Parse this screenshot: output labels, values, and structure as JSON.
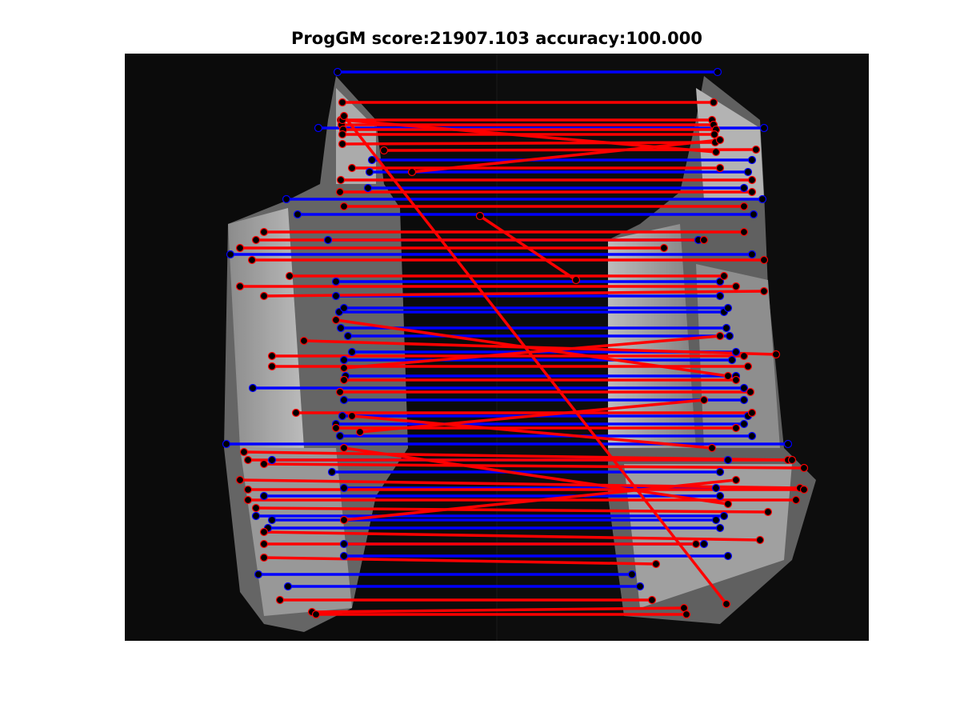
{
  "figure": {
    "title": "ProgGM score:21907.103 accuracy:100.000"
  },
  "image_pair": {
    "description": "Two grayscale aerial views of the same multi-winged building placed side by side, with feature keypoints (black circles) connected by match lines.",
    "left_view": "grayscale-building-view-1",
    "right_view": "grayscale-building-view-2"
  },
  "legend_colors": {
    "blue_lines": "#0000ff",
    "red_lines": "#ff0000",
    "keypoints": "#000000"
  },
  "matches": {
    "blue": [
      [
        422,
        90,
        897,
        90
      ],
      [
        358,
        249,
        953,
        249
      ],
      [
        288,
        318,
        940,
        318
      ],
      [
        316,
        485,
        930,
        485
      ],
      [
        420,
        352,
        900,
        352
      ],
      [
        420,
        370,
        900,
        370
      ],
      [
        424,
        390,
        905,
        390
      ],
      [
        426,
        410,
        908,
        410
      ],
      [
        430,
        450,
        915,
        450
      ],
      [
        432,
        470,
        920,
        470
      ],
      [
        430,
        500,
        930,
        500
      ],
      [
        428,
        520,
        935,
        520
      ],
      [
        283,
        555,
        985,
        555
      ],
      [
        340,
        575,
        910,
        575
      ],
      [
        330,
        620,
        900,
        620
      ],
      [
        320,
        645,
        905,
        645
      ],
      [
        335,
        660,
        900,
        660
      ],
      [
        430,
        680,
        880,
        680
      ],
      [
        430,
        695,
        910,
        695
      ],
      [
        323,
        718,
        790,
        718
      ],
      [
        360,
        733,
        800,
        733
      ],
      [
        398,
        160,
        955,
        160
      ],
      [
        465,
        200,
        940,
        200
      ],
      [
        462,
        215,
        935,
        215
      ],
      [
        460,
        235,
        930,
        235
      ],
      [
        372,
        268,
        942,
        268
      ],
      [
        410,
        300,
        873,
        300
      ],
      [
        430,
        385,
        910,
        385
      ],
      [
        435,
        420,
        912,
        420
      ],
      [
        440,
        440,
        920,
        440
      ],
      [
        420,
        530,
        930,
        530
      ],
      [
        425,
        545,
        940,
        545
      ],
      [
        415,
        590,
        900,
        590
      ],
      [
        430,
        610,
        895,
        610
      ],
      [
        340,
        650,
        895,
        650
      ]
    ],
    "red": [
      [
        428,
        128,
        892,
        128
      ],
      [
        426,
        150,
        890,
        150
      ],
      [
        427,
        156,
        892,
        156
      ],
      [
        429,
        162,
        895,
        162
      ],
      [
        428,
        168,
        893,
        168
      ],
      [
        428,
        180,
        894,
        178
      ],
      [
        480,
        188,
        945,
        187
      ],
      [
        440,
        210,
        900,
        210
      ],
      [
        426,
        225,
        940,
        225
      ],
      [
        425,
        240,
        940,
        240
      ],
      [
        430,
        258,
        930,
        258
      ],
      [
        330,
        290,
        930,
        290
      ],
      [
        320,
        300,
        880,
        300
      ],
      [
        300,
        310,
        830,
        310
      ],
      [
        315,
        325,
        955,
        325
      ],
      [
        362,
        345,
        905,
        345
      ],
      [
        300,
        358,
        920,
        358
      ],
      [
        330,
        370,
        955,
        364
      ],
      [
        380,
        426,
        970,
        443
      ],
      [
        340,
        445,
        930,
        445
      ],
      [
        340,
        458,
        935,
        458
      ],
      [
        430,
        475,
        920,
        475
      ],
      [
        425,
        490,
        938,
        490
      ],
      [
        370,
        516,
        940,
        516
      ],
      [
        420,
        535,
        920,
        535
      ],
      [
        305,
        565,
        985,
        575
      ],
      [
        310,
        575,
        990,
        575
      ],
      [
        330,
        580,
        1005,
        585
      ],
      [
        300,
        600,
        1000,
        610
      ],
      [
        310,
        612,
        1005,
        612
      ],
      [
        310,
        625,
        995,
        625
      ],
      [
        320,
        635,
        960,
        640
      ],
      [
        330,
        665,
        950,
        675
      ],
      [
        330,
        680,
        870,
        680
      ],
      [
        330,
        697,
        820,
        705
      ],
      [
        350,
        750,
        815,
        750
      ],
      [
        390,
        765,
        855,
        760
      ],
      [
        395,
        768,
        858,
        768
      ],
      [
        428,
        150,
        895,
        190
      ],
      [
        515,
        215,
        900,
        175
      ],
      [
        430,
        145,
        908,
        755
      ],
      [
        600,
        270,
        720,
        350
      ],
      [
        420,
        400,
        910,
        470
      ],
      [
        430,
        460,
        900,
        420
      ],
      [
        440,
        520,
        890,
        560
      ],
      [
        450,
        540,
        880,
        500
      ],
      [
        430,
        560,
        910,
        630
      ],
      [
        430,
        650,
        920,
        600
      ]
    ]
  }
}
